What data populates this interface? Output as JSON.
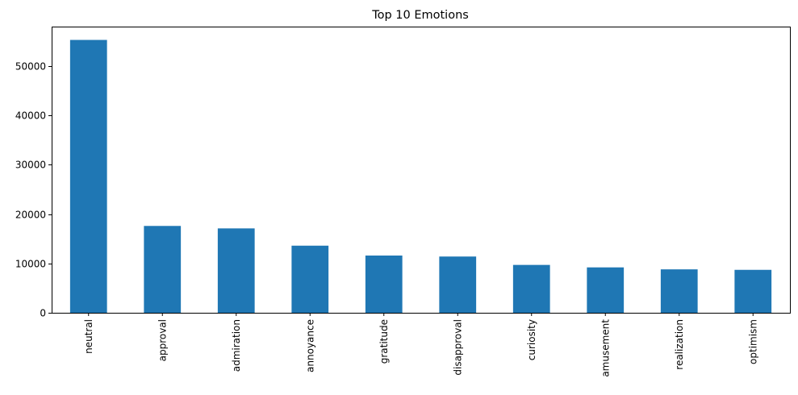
{
  "chart_data": {
    "type": "bar",
    "title": "Top 10 Emotions",
    "xlabel": "",
    "ylabel": "",
    "categories": [
      "neutral",
      "approval",
      "admiration",
      "annoyance",
      "gratitude",
      "disapproval",
      "curiosity",
      "amusement",
      "realization",
      "optimism"
    ],
    "values": [
      55300,
      17600,
      17100,
      13600,
      11600,
      11400,
      9700,
      9200,
      8800,
      8700
    ],
    "ylim": [
      0,
      58000
    ],
    "yticks": [
      0,
      10000,
      20000,
      30000,
      40000,
      50000
    ],
    "ytick_labels": [
      "0",
      "10000",
      "20000",
      "30000",
      "40000",
      "50000"
    ],
    "grid": false,
    "bar_color": "#1f77b4",
    "x_tick_rotation": "vertical"
  }
}
